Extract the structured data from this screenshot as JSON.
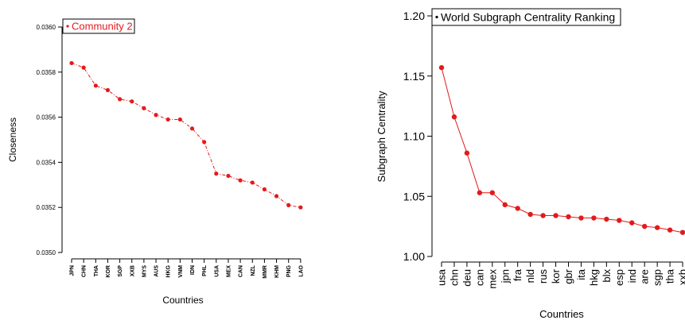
{
  "chart_data": [
    {
      "type": "line",
      "xlabel": "Countries",
      "ylabel": "Closeness",
      "ylim": [
        0.035,
        0.036
      ],
      "yticks": [
        "0.0350",
        "0.0352",
        "0.0354",
        "0.0356",
        "0.0358",
        "0.0360"
      ],
      "categories": [
        "JPN",
        "CHN",
        "THA",
        "KOR",
        "SGP",
        "XXB",
        "MYS",
        "AUS",
        "HKG",
        "VNM",
        "IDN",
        "PHL",
        "USA",
        "MEX",
        "CAN",
        "NZL",
        "MMR",
        "KHM",
        "PNG",
        "LAO"
      ],
      "series": [
        {
          "name": "Community 2",
          "color": "#e31a1c",
          "values": [
            0.03584,
            0.03582,
            0.03574,
            0.03572,
            0.03568,
            0.03567,
            0.03564,
            0.03561,
            0.03559,
            0.03559,
            0.03555,
            0.03549,
            0.03535,
            0.03534,
            0.03532,
            0.03531,
            0.03528,
            0.03525,
            0.03521,
            0.0352
          ]
        }
      ],
      "legend": "top-left",
      "grid": false
    },
    {
      "type": "line",
      "xlabel": "Countries",
      "ylabel": "Subgraph Centrality",
      "ylim": [
        1.0,
        1.2
      ],
      "yticks": [
        "1.00",
        "1.05",
        "1.10",
        "1.15",
        "1.20"
      ],
      "categories": [
        "usa",
        "chn",
        "deu",
        "can",
        "mex",
        "jpn",
        "fra",
        "nld",
        "rus",
        "kor",
        "gbr",
        "ita",
        "hkg",
        "blx",
        "esp",
        "ind",
        "are",
        "sgp",
        "tha",
        "xxb"
      ],
      "series": [
        {
          "name": "World Subgraph Centrality Ranking",
          "color": "#e31a1c",
          "values": [
            1.157,
            1.116,
            1.086,
            1.053,
            1.053,
            1.043,
            1.04,
            1.035,
            1.034,
            1.034,
            1.033,
            1.032,
            1.032,
            1.031,
            1.03,
            1.028,
            1.025,
            1.024,
            1.022,
            1.02
          ]
        }
      ],
      "legend": "top-left",
      "grid": false
    }
  ]
}
